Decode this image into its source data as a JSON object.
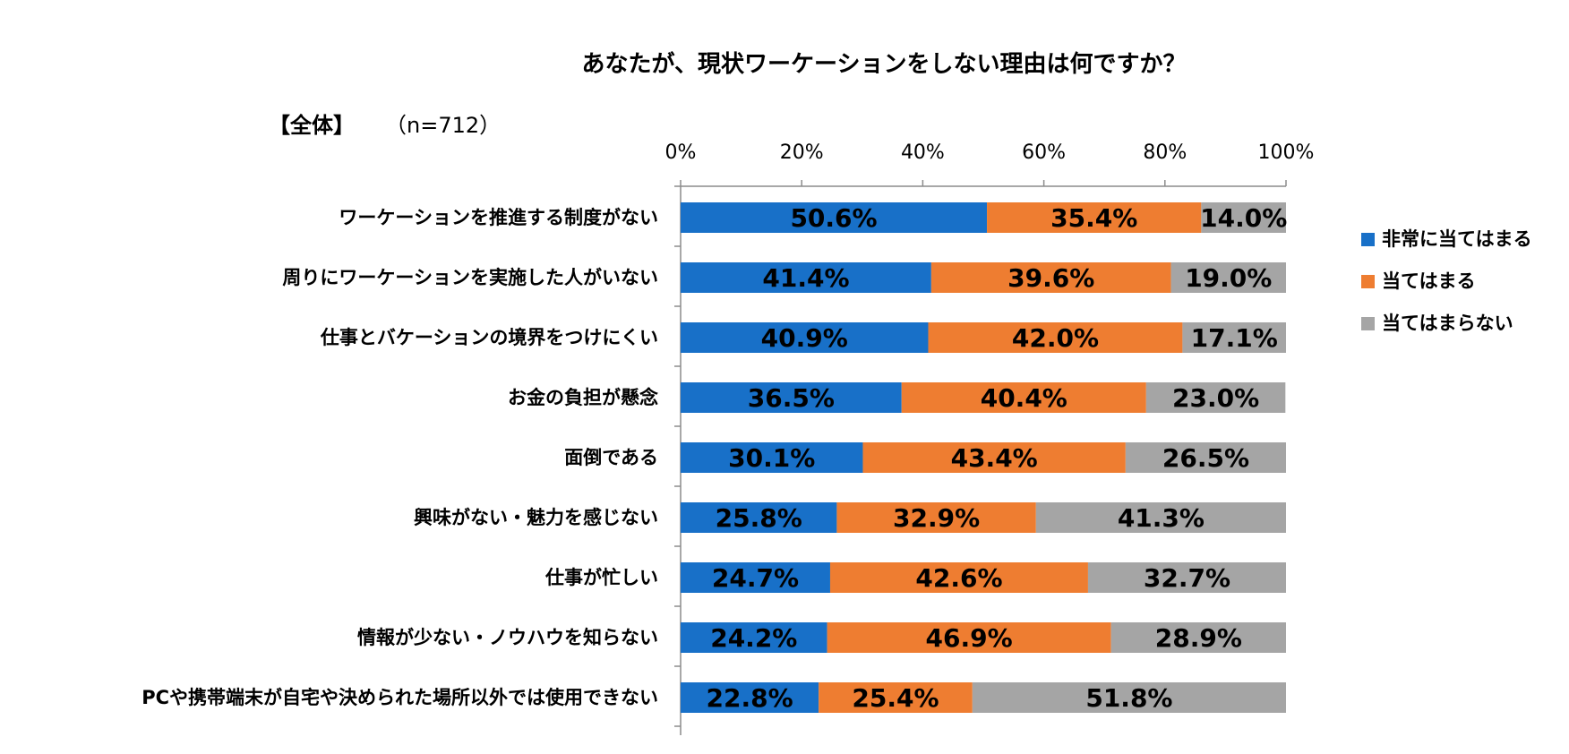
{
  "chart_data": {
    "type": "bar",
    "orientation": "horizontal",
    "stacked": true,
    "title": "あなたが、現状ワーケーションをしない理由は何ですか？",
    "subtitle": "【全体】",
    "sample_size": "（n=712）",
    "xlim": [
      0,
      100
    ],
    "x_ticks": [
      "0%",
      "20%",
      "40%",
      "60%",
      "80%",
      "100%"
    ],
    "categories": [
      "ワーケーションを推進する制度がない",
      "周りにワーケーションを実施した人がいない",
      "仕事とバケーションの境界をつけにくい",
      "お金の負担が懸念",
      "面倒である",
      "興味がない・魅力を感じない",
      "仕事が忙しい",
      "情報が少ない・ノウハウを知らない",
      "PCや携帯端末が自宅や決められた場所以外では使用できない"
    ],
    "series": [
      {
        "name": "非常に当てはまる",
        "color": "#1870C8",
        "values": [
          50.6,
          41.4,
          40.9,
          36.5,
          30.1,
          25.8,
          24.7,
          24.2,
          22.8
        ],
        "labels": [
          "50.6%",
          "41.4%",
          "40.9%",
          "36.5%",
          "30.1%",
          "25.8%",
          "24.7%",
          "24.2%",
          "22.8%"
        ]
      },
      {
        "name": "当てはまる",
        "color": "#EE7D31",
        "values": [
          35.4,
          39.6,
          42.0,
          40.4,
          43.4,
          32.9,
          42.6,
          46.9,
          25.4
        ],
        "labels": [
          "35.4%",
          "39.6%",
          "42.0%",
          "40.4%",
          "43.4%",
          "32.9%",
          "42.6%",
          "46.9%",
          "25.4%"
        ]
      },
      {
        "name": "当てはまらない",
        "color": "#A5A5A5",
        "values": [
          14.0,
          19.0,
          17.1,
          23.0,
          26.5,
          41.3,
          32.7,
          28.9,
          51.8
        ],
        "labels": [
          "14.0%",
          "19.0%",
          "17.1%",
          "23.0%",
          "26.5%",
          "41.3%",
          "32.7%",
          "28.9%",
          "51.8%"
        ]
      }
    ],
    "legend_position": "right"
  }
}
